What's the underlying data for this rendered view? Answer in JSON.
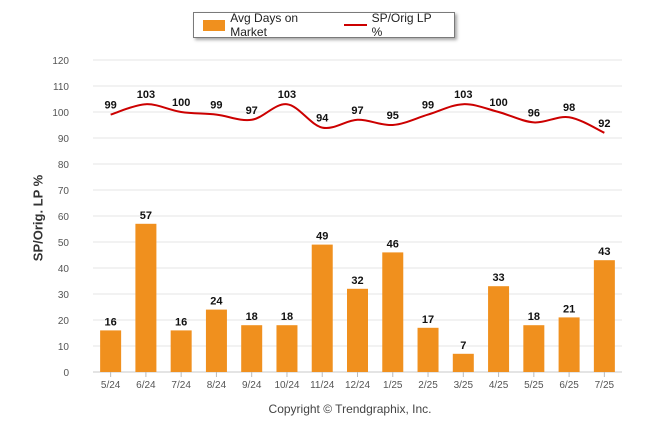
{
  "chart_data": {
    "type": "bar+line",
    "title": "",
    "xlabel": "",
    "ylabel": "SP/Orig. LP %",
    "ylim": [
      0,
      120
    ],
    "yticks": [
      0,
      10,
      20,
      30,
      40,
      50,
      60,
      70,
      80,
      90,
      100,
      110,
      120
    ],
    "grid": true,
    "legend_position": "top",
    "categories": [
      "5/24",
      "6/24",
      "7/24",
      "8/24",
      "9/24",
      "10/24",
      "11/24",
      "12/24",
      "1/25",
      "2/25",
      "3/25",
      "4/25",
      "5/25",
      "6/25",
      "7/25"
    ],
    "series": [
      {
        "name": "Avg Days on Market",
        "type": "bar",
        "color": "#F0901E",
        "values": [
          16,
          57,
          16,
          24,
          18,
          18,
          49,
          32,
          46,
          17,
          7,
          33,
          18,
          21,
          43
        ]
      },
      {
        "name": "SP/Orig LP %",
        "type": "line",
        "color": "#CC0000",
        "values": [
          99,
          103,
          100,
          99,
          97,
          103,
          94,
          97,
          95,
          99,
          103,
          100,
          96,
          98,
          92
        ]
      }
    ]
  },
  "footer": "Copyright © Trendgraphix, Inc."
}
